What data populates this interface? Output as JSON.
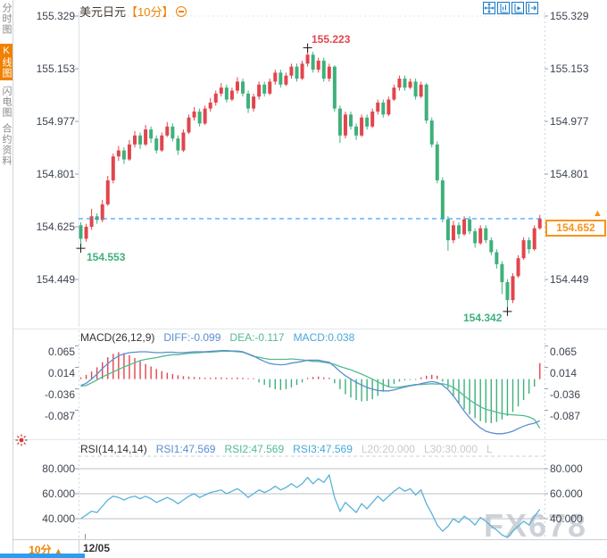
{
  "sidebar": {
    "tabs": [
      {
        "label": "分时图",
        "active": false
      },
      {
        "label": "K线图",
        "active": true
      },
      {
        "label": "闪电图",
        "active": false
      },
      {
        "label": "合约资料",
        "active": false
      }
    ]
  },
  "header": {
    "symbol": "美元日元",
    "period": "【10分】"
  },
  "toolbar": {
    "icons": [
      "move-crosshair",
      "y-axis-scale",
      "y-axis-auto",
      "shift-right"
    ]
  },
  "price_axis": {
    "labels": [
      "155.329",
      "155.153",
      "154.977",
      "154.801",
      "154.625",
      "154.449"
    ]
  },
  "macd_axis": {
    "labels": [
      "0.065",
      "0.014",
      "-0.036",
      "-0.087"
    ]
  },
  "rsi_axis": {
    "labels": [
      "80.000",
      "60.000",
      "40.000"
    ]
  },
  "annotations": {
    "high": "155.223",
    "first_low": "154.553",
    "low": "154.342",
    "last_price": "154.652"
  },
  "macd_header": {
    "title": "MACD(26,12,9)",
    "diff": "DIFF:-0.099",
    "dea": "DEA:-0.117",
    "macd": "MACD:0.038"
  },
  "rsi_header": {
    "title": "RSI(14,14,14)",
    "rsi1": "RSI1:47.569",
    "rsi2": "RSI2:47.569",
    "rsi3": "RSI3:47.569",
    "l20": "L20:20.000",
    "l30": "L30:30.000",
    "l_more": "L"
  },
  "footer": {
    "period": "10分",
    "arrow": "▲",
    "date": "12/05"
  },
  "watermark": "FX678",
  "colors": {
    "up": "#e2454d",
    "down": "#3fb07c",
    "diff_line": "#5b8dd3",
    "dea_line": "#53bb90",
    "rsi_line": "#58b2d9",
    "accent": "#f7941d",
    "active_tab_bg": "#f08200",
    "price_line": "#2e9bff",
    "grid_strong": "#b9bfc7",
    "grid_light": "#dde3ea",
    "tick": "#97a1ab",
    "marker": "#1a1a1a"
  },
  "chart_data": {
    "type": "candlestick-multi-panel",
    "symbol": "美元日元",
    "period": "10分",
    "x_axis": {
      "date_label": "12/05"
    },
    "panels": [
      {
        "name": "price",
        "type": "candlestick",
        "y_ticks": [
          155.329,
          155.153,
          154.977,
          154.801,
          154.625,
          154.449
        ],
        "last_price": 154.652,
        "markers": [
          {
            "type": "first-low",
            "index": 0,
            "price": 154.553
          },
          {
            "type": "high",
            "index": 42,
            "price": 155.223
          },
          {
            "type": "low",
            "index": 79,
            "price": 154.342
          }
        ],
        "ohlc": [
          [
            154.63,
            154.64,
            154.553,
            154.585
          ],
          [
            154.585,
            154.635,
            154.575,
            154.625
          ],
          [
            154.625,
            154.685,
            154.615,
            154.66
          ],
          [
            154.66,
            154.67,
            154.635,
            154.648
          ],
          [
            154.648,
            154.715,
            154.64,
            154.7
          ],
          [
            154.7,
            154.795,
            154.695,
            154.78
          ],
          [
            154.78,
            154.87,
            154.77,
            154.86
          ],
          [
            154.86,
            154.895,
            154.845,
            154.88
          ],
          [
            154.88,
            154.89,
            154.835,
            154.85
          ],
          [
            154.85,
            154.915,
            154.845,
            154.9
          ],
          [
            154.9,
            154.945,
            154.89,
            154.93
          ],
          [
            154.93,
            154.94,
            154.885,
            154.9
          ],
          [
            154.9,
            154.965,
            154.895,
            154.95
          ],
          [
            154.95,
            154.96,
            154.905,
            154.92
          ],
          [
            154.92,
            154.93,
            154.87,
            154.88
          ],
          [
            154.88,
            154.94,
            154.875,
            154.93
          ],
          [
            154.93,
            154.975,
            154.925,
            154.96
          ],
          [
            154.96,
            154.97,
            154.91,
            154.92
          ],
          [
            154.92,
            154.93,
            154.865,
            154.88
          ],
          [
            154.88,
            154.95,
            154.875,
            154.94
          ],
          [
            154.94,
            155.0,
            154.935,
            154.99
          ],
          [
            154.99,
            155.025,
            154.98,
            155.01
          ],
          [
            155.01,
            155.02,
            154.96,
            154.97
          ],
          [
            154.97,
            155.03,
            154.965,
            155.02
          ],
          [
            155.02,
            155.055,
            155.01,
            155.04
          ],
          [
            155.04,
            155.08,
            155.03,
            155.07
          ],
          [
            155.07,
            155.105,
            155.06,
            155.09
          ],
          [
            155.09,
            155.1,
            155.04,
            155.05
          ],
          [
            155.05,
            155.09,
            155.045,
            155.08
          ],
          [
            155.08,
            155.125,
            155.07,
            155.11
          ],
          [
            155.11,
            155.12,
            155.06,
            155.07
          ],
          [
            155.07,
            155.08,
            155.005,
            155.02
          ],
          [
            155.02,
            155.07,
            155.01,
            155.06
          ],
          [
            155.06,
            155.11,
            155.05,
            155.1
          ],
          [
            155.1,
            155.11,
            155.06,
            155.07
          ],
          [
            155.07,
            155.12,
            155.065,
            155.11
          ],
          [
            155.11,
            155.15,
            155.1,
            155.14
          ],
          [
            155.14,
            155.15,
            155.09,
            155.1
          ],
          [
            155.1,
            155.14,
            155.095,
            155.13
          ],
          [
            155.13,
            155.17,
            155.12,
            155.16
          ],
          [
            155.16,
            155.17,
            155.11,
            155.12
          ],
          [
            155.12,
            155.18,
            155.115,
            155.17
          ],
          [
            155.17,
            155.223,
            155.16,
            155.2
          ],
          [
            155.2,
            155.21,
            155.14,
            155.15
          ],
          [
            155.15,
            155.19,
            155.14,
            155.18
          ],
          [
            155.18,
            155.19,
            155.11,
            155.12
          ],
          [
            155.12,
            155.17,
            155.11,
            155.16
          ],
          [
            155.16,
            155.165,
            155.01,
            155.02
          ],
          [
            155.02,
            155.03,
            154.905,
            154.93
          ],
          [
            154.93,
            155.01,
            154.92,
            155.0
          ],
          [
            155.0,
            155.01,
            154.95,
            154.96
          ],
          [
            154.96,
            154.97,
            154.915,
            154.93
          ],
          [
            154.93,
            155.0,
            154.925,
            154.99
          ],
          [
            154.99,
            155.0,
            154.95,
            154.96
          ],
          [
            154.96,
            155.02,
            154.955,
            155.01
          ],
          [
            155.01,
            155.05,
            155.0,
            155.04
          ],
          [
            155.04,
            155.05,
            154.99,
            155.0
          ],
          [
            155.0,
            155.06,
            154.995,
            155.05
          ],
          [
            155.05,
            155.1,
            155.045,
            155.09
          ],
          [
            155.09,
            155.13,
            155.08,
            155.12
          ],
          [
            155.12,
            155.13,
            155.08,
            155.09
          ],
          [
            155.09,
            155.12,
            155.085,
            155.11
          ],
          [
            155.11,
            155.12,
            155.05,
            155.06
          ],
          [
            155.06,
            155.11,
            155.055,
            155.1
          ],
          [
            155.1,
            155.105,
            154.97,
            154.98
          ],
          [
            154.98,
            154.99,
            154.89,
            154.9
          ],
          [
            154.9,
            154.91,
            154.77,
            154.78
          ],
          [
            154.78,
            154.79,
            154.64,
            154.65
          ],
          [
            154.65,
            154.66,
            154.545,
            154.58
          ],
          [
            154.58,
            154.645,
            154.57,
            154.63
          ],
          [
            154.63,
            154.64,
            154.585,
            154.6
          ],
          [
            154.6,
            154.66,
            154.595,
            154.65
          ],
          [
            154.65,
            154.66,
            154.6,
            154.61
          ],
          [
            154.61,
            154.62,
            154.555,
            154.57
          ],
          [
            154.57,
            154.63,
            154.565,
            154.62
          ],
          [
            154.62,
            154.63,
            154.57,
            154.58
          ],
          [
            154.58,
            154.59,
            154.53,
            154.54
          ],
          [
            154.54,
            154.55,
            154.485,
            154.5
          ],
          [
            154.5,
            154.51,
            154.4,
            154.44
          ],
          [
            154.44,
            154.45,
            154.342,
            154.38
          ],
          [
            154.38,
            154.47,
            154.37,
            154.46
          ],
          [
            154.46,
            154.53,
            154.455,
            154.52
          ],
          [
            154.52,
            154.59,
            154.515,
            154.58
          ],
          [
            154.58,
            154.59,
            154.535,
            154.55
          ],
          [
            154.55,
            154.63,
            154.545,
            154.62
          ],
          [
            154.62,
            154.665,
            154.615,
            154.652
          ]
        ]
      },
      {
        "name": "macd",
        "type": "macd",
        "params": "26,12,9",
        "y_ticks": [
          0.065,
          0.014,
          -0.036,
          -0.087
        ],
        "current": {
          "diff": -0.099,
          "dea": -0.117,
          "macd": 0.038
        },
        "diff": [
          -0.015,
          -0.01,
          0.0,
          0.012,
          0.025,
          0.037,
          0.047,
          0.055,
          0.06,
          0.063,
          0.064,
          0.065,
          0.065,
          0.064,
          0.063,
          0.063,
          0.064,
          0.064,
          0.063,
          0.063,
          0.064,
          0.065,
          0.065,
          0.065,
          0.066,
          0.067,
          0.068,
          0.068,
          0.067,
          0.067,
          0.065,
          0.06,
          0.055,
          0.048,
          0.042,
          0.037,
          0.035,
          0.034,
          0.035,
          0.038,
          0.04,
          0.042,
          0.045,
          0.045,
          0.045,
          0.042,
          0.04,
          0.03,
          0.018,
          0.008,
          0.0,
          -0.008,
          -0.014,
          -0.02,
          -0.024,
          -0.027,
          -0.028,
          -0.028,
          -0.026,
          -0.022,
          -0.019,
          -0.016,
          -0.014,
          -0.011,
          -0.008,
          -0.006,
          -0.008,
          -0.014,
          -0.025,
          -0.04,
          -0.058,
          -0.076,
          -0.092,
          -0.105,
          -0.116,
          -0.124,
          -0.128,
          -0.13,
          -0.13,
          -0.128,
          -0.124,
          -0.118,
          -0.112,
          -0.108,
          -0.105,
          -0.099
        ],
        "dea": [
          -0.017,
          -0.015,
          -0.009,
          -0.002,
          0.005,
          0.011,
          0.017,
          0.023,
          0.029,
          0.034,
          0.039,
          0.044,
          0.047,
          0.049,
          0.051,
          0.054,
          0.056,
          0.058,
          0.058,
          0.06,
          0.061,
          0.062,
          0.063,
          0.064,
          0.064,
          0.065,
          0.066,
          0.066,
          0.066,
          0.065,
          0.064,
          0.059,
          0.054,
          0.052,
          0.049,
          0.047,
          0.047,
          0.047,
          0.047,
          0.048,
          0.047,
          0.046,
          0.044,
          0.042,
          0.042,
          0.04,
          0.038,
          0.035,
          0.03,
          0.026,
          0.022,
          0.017,
          0.012,
          0.006,
          0.0,
          -0.007,
          -0.013,
          -0.018,
          -0.02,
          -0.019,
          -0.017,
          -0.015,
          -0.013,
          -0.013,
          -0.012,
          -0.011,
          -0.012,
          -0.011,
          -0.014,
          -0.02,
          -0.029,
          -0.04,
          -0.05,
          -0.058,
          -0.066,
          -0.072,
          -0.075,
          -0.079,
          -0.082,
          -0.084,
          -0.085,
          -0.086,
          -0.087,
          -0.09,
          -0.096,
          -0.117
        ],
        "hist": [
          0.004,
          0.01,
          0.018,
          0.028,
          0.04,
          0.052,
          0.06,
          0.064,
          0.062,
          0.057,
          0.05,
          0.043,
          0.036,
          0.03,
          0.024,
          0.019,
          0.015,
          0.012,
          0.009,
          0.007,
          0.006,
          0.005,
          0.004,
          0.003,
          0.003,
          0.004,
          0.004,
          0.003,
          0.003,
          0.004,
          0.003,
          0.002,
          0.002,
          -0.008,
          -0.014,
          -0.02,
          -0.024,
          -0.026,
          -0.024,
          -0.02,
          -0.014,
          -0.008,
          0.003,
          0.005,
          0.006,
          0.004,
          0.003,
          -0.01,
          -0.024,
          -0.036,
          -0.044,
          -0.05,
          -0.053,
          -0.052,
          -0.048,
          -0.04,
          -0.03,
          -0.02,
          -0.012,
          -0.006,
          -0.003,
          -0.002,
          -0.002,
          0.004,
          0.008,
          0.01,
          0.008,
          -0.006,
          -0.022,
          -0.04,
          -0.058,
          -0.072,
          -0.084,
          -0.093,
          -0.1,
          -0.104,
          -0.105,
          -0.102,
          -0.096,
          -0.088,
          -0.078,
          -0.065,
          -0.05,
          -0.035,
          -0.018,
          0.038
        ]
      },
      {
        "name": "rsi",
        "type": "line",
        "params": "14,14,14",
        "y_ticks": [
          80,
          60,
          40
        ],
        "levels": {
          "L20": 20.0,
          "L30": 30.0
        },
        "current": {
          "rsi1": 47.569,
          "rsi2": 47.569,
          "rsi3": 47.569
        },
        "rsi": [
          40,
          43,
          46,
          45,
          50,
          55,
          58,
          57,
          55,
          57,
          58,
          56,
          58,
          56,
          53,
          55,
          57,
          55,
          52,
          55,
          58,
          60,
          57,
          59,
          61,
          62,
          63,
          60,
          62,
          64,
          61,
          57,
          60,
          63,
          61,
          63,
          66,
          63,
          65,
          68,
          65,
          68,
          73,
          68,
          72,
          69,
          75,
          57,
          46,
          53,
          49,
          45,
          52,
          48,
          53,
          58,
          54,
          58,
          62,
          65,
          62,
          64,
          59,
          63,
          52,
          44,
          35,
          30,
          34,
          40,
          37,
          42,
          39,
          35,
          41,
          38,
          34,
          31,
          27,
          25,
          30,
          34,
          38,
          35,
          42,
          47.569
        ]
      }
    ]
  }
}
